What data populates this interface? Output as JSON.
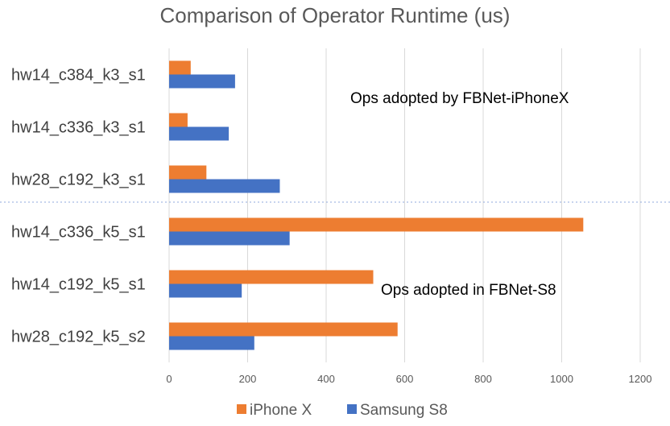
{
  "chart_data": {
    "type": "bar",
    "orientation": "horizontal",
    "title": "Comparison of Operator Runtime (us)",
    "categories": [
      "hw14_c384_k3_s1",
      "hw14_c336_k3_s1",
      "hw28_c192_k3_s1",
      "hw14_c336_k5_s1",
      "hw14_c192_k5_s1",
      "hw28_c192_k5_s2"
    ],
    "series": [
      {
        "name": "iPhone X",
        "color": "#ED7D31",
        "values": [
          55,
          47,
          95,
          1055,
          520,
          582
        ]
      },
      {
        "name": "Samsung S8",
        "color": "#4472C4",
        "values": [
          168,
          152,
          282,
          307,
          185,
          217
        ]
      }
    ],
    "xlim": [
      0,
      1200
    ],
    "xticks": [
      "0",
      "200",
      "400",
      "600",
      "800",
      "1000",
      "1200"
    ],
    "grid": true,
    "legend_position": "bottom",
    "annotations": [
      "Ops adopted by FBNet-iPhoneX",
      "Ops adopted in FBNet-S8"
    ],
    "separator_after_category": 2
  }
}
